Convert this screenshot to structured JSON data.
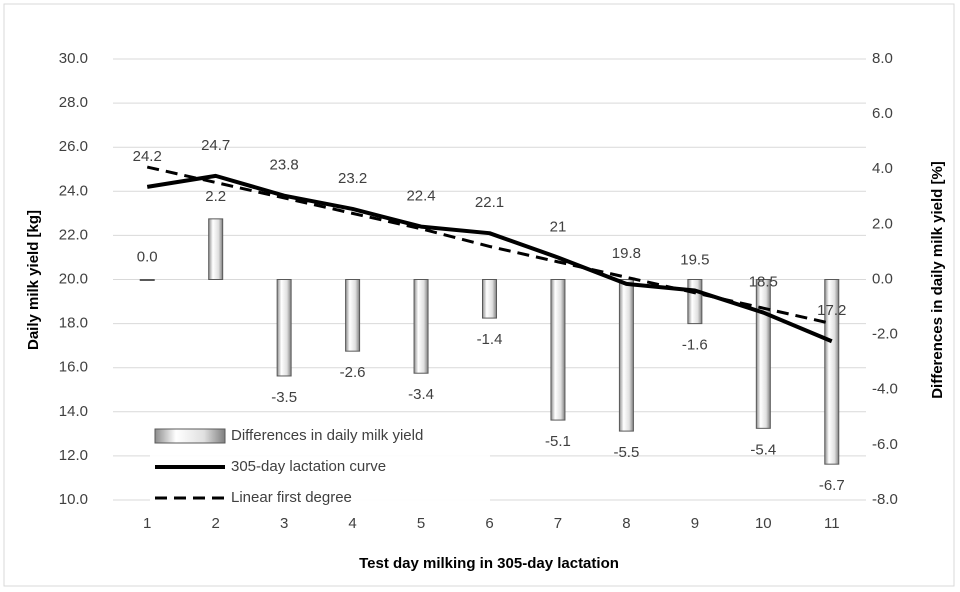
{
  "chart_data": {
    "type": "combo",
    "x_title": "Test day milking in 305-day lactation",
    "y_title": "Daily milk yield [kg]",
    "y2_title": "Differences in daily milk yield [%]",
    "categories": [
      "1",
      "2",
      "3",
      "4",
      "5",
      "6",
      "7",
      "8",
      "9",
      "10",
      "11"
    ],
    "ylim": [
      10,
      30
    ],
    "yticks": [
      {
        "value": 10,
        "label": "10.0"
      },
      {
        "value": 12,
        "label": "12.0"
      },
      {
        "value": 14,
        "label": "14.0"
      },
      {
        "value": 16,
        "label": "16.0"
      },
      {
        "value": 18,
        "label": "18.0"
      },
      {
        "value": 20,
        "label": "20.0"
      },
      {
        "value": 22,
        "label": "22.0"
      },
      {
        "value": 24,
        "label": "24.0"
      },
      {
        "value": 26,
        "label": "26.0"
      },
      {
        "value": 28,
        "label": "28.0"
      },
      {
        "value": 30,
        "label": "30.0"
      }
    ],
    "y2lim": [
      -8,
      8
    ],
    "y2ticks": [
      {
        "value": -8,
        "label": "-8.0"
      },
      {
        "value": -6,
        "label": "-6.0"
      },
      {
        "value": -4,
        "label": "-4.0"
      },
      {
        "value": -2,
        "label": "-2.0"
      },
      {
        "value": 0,
        "label": "0.0"
      },
      {
        "value": 2,
        "label": "2.0"
      },
      {
        "value": 4,
        "label": "4.0"
      },
      {
        "value": 6,
        "label": "6.0"
      },
      {
        "value": 8,
        "label": "8.0"
      }
    ],
    "grid": true,
    "legend": "bottom-left",
    "series": [
      {
        "name": "Differences in daily milk yield",
        "type": "bar",
        "axis": "y2",
        "color": "#bfbfbf",
        "values": [
          0,
          2.2,
          -3.5,
          -2.6,
          -3.4,
          -1.4,
          -5.1,
          -5.5,
          -1.6,
          -5.4,
          -6.7
        ],
        "value_labels": [
          "0.0",
          "2.2",
          "-3.5",
          "-2.6",
          "-3.4",
          "-1.4",
          "-5.1",
          "-5.5",
          "-1.6",
          "-5.4",
          "-6.7"
        ]
      },
      {
        "name": "305-day lactation curve",
        "type": "line",
        "color": "#000000",
        "line_style": "solid",
        "show_labels": true,
        "values": [
          24.2,
          24.7,
          23.8,
          23.2,
          22.4,
          22.1,
          21.0,
          19.8,
          19.5,
          18.5,
          17.2
        ]
      },
      {
        "name": "Linear first degree",
        "type": "line",
        "color": "#000000",
        "line_style": "dashed",
        "show_labels": false,
        "values": [
          25.1,
          24.4,
          23.7,
          23.0,
          22.3,
          21.5,
          20.8,
          20.1,
          19.4,
          18.7,
          18.0
        ]
      }
    ]
  }
}
